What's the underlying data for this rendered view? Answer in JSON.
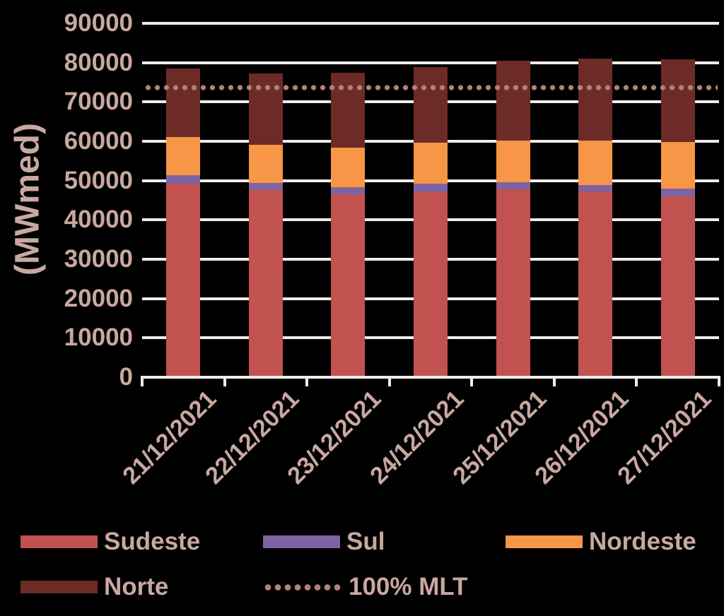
{
  "chart_data": {
    "type": "bar",
    "stacked": true,
    "title": "",
    "ylabel": "(MWmed)",
    "xlabel": "",
    "categories": [
      "21/12/2021",
      "22/12/2021",
      "23/12/2021",
      "24/12/2021",
      "25/12/2021",
      "26/12/2021",
      "27/12/2021"
    ],
    "series": [
      {
        "name": "Sudeste",
        "color": "#c1524f",
        "values": [
          49300,
          47600,
          46600,
          47100,
          47700,
          47300,
          46000
        ]
      },
      {
        "name": "Sul",
        "color": "#7e63a2",
        "values": [
          2000,
          1800,
          1800,
          2100,
          1900,
          1600,
          1900
        ]
      },
      {
        "name": "Nordeste",
        "color": "#f79646",
        "values": [
          9700,
          9700,
          9900,
          10400,
          10600,
          11200,
          11900
        ]
      },
      {
        "name": "Norte",
        "color": "#6c2b27",
        "values": [
          17500,
          18100,
          19200,
          19300,
          20200,
          20900,
          21000
        ]
      }
    ],
    "totals": [
      78500,
      77200,
      77500,
      78900,
      80400,
      81000,
      80800
    ],
    "reference_line": {
      "name": "100% MLT",
      "value": 73600,
      "style": "dotted",
      "color": "#b08376"
    },
    "ylim": [
      0,
      90000
    ],
    "ytick_step": 10000,
    "ytick_labels": [
      "0",
      "10000",
      "20000",
      "30000",
      "40000",
      "50000",
      "60000",
      "70000",
      "80000",
      "90000"
    ],
    "grid": true,
    "legend_position": "bottom"
  },
  "colors": {
    "background": "#000000",
    "text": "#c8a8a0",
    "gridline": "#f2ebe8",
    "axis": "#f2ebe8"
  }
}
